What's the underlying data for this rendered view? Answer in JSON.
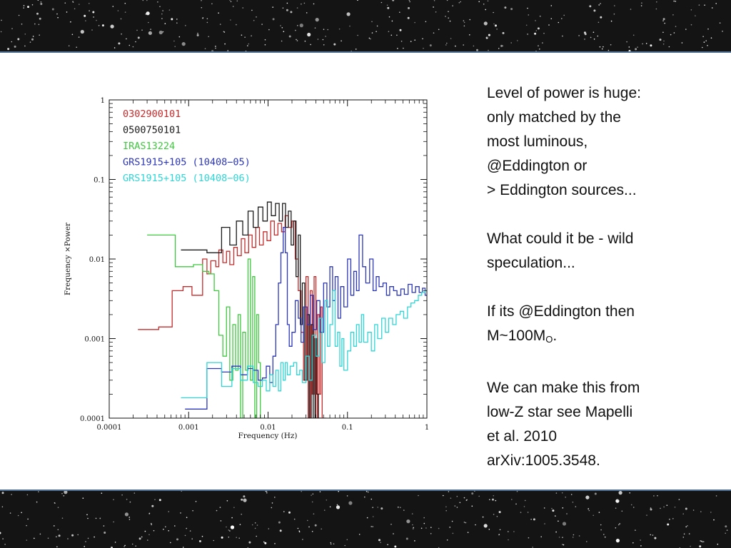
{
  "notes": {
    "p1_line1": "Level of power is huge:",
    "p1_line2": "only matched by the",
    "p1_line3": "most luminous,",
    "p1_line4": "@Eddington or",
    "p1_line5": "> Eddington sources...",
    "p2_line1": "What could it be - wild",
    "p2_line2": "speculation...",
    "p3_line1": "If its @Eddington then",
    "p3_prefix": "M~100M",
    "p3_sub": "O",
    "p3_suffix": ".",
    "p4_line1": "We can make this from",
    "p4_line2": "low-Z  star see Mapelli",
    "p4_line3": "et al. 2010",
    "p4_line4": "arXiv:1005.3548."
  },
  "colors": {
    "background_space": "#141414",
    "panel": "#ffffff",
    "panel_border": "#4f6f94"
  },
  "chart_data": {
    "type": "line",
    "style": "step",
    "xlabel": "Frequency (Hz)",
    "ylabel": "Frequency ×Power",
    "xscale": "log",
    "yscale": "log",
    "xlim": [
      0.0001,
      1
    ],
    "ylim": [
      0.0001,
      1
    ],
    "xticks": [
      "0.0001",
      "0.001",
      "0.01",
      "0.1",
      "1"
    ],
    "yticks": [
      "0.0001",
      "0.001",
      "0.01",
      "0.1",
      "1"
    ],
    "legend_position": "top-left",
    "series": [
      {
        "name": "0302900101",
        "color": "#c62b2b",
        "x": [
          0.00023,
          0.00042,
          0.00062,
          0.00085,
          0.0011,
          0.0015,
          0.0017,
          0.0019,
          0.0022,
          0.0024,
          0.0027,
          0.003,
          0.0033,
          0.0037,
          0.0041,
          0.0046,
          0.0051,
          0.0057,
          0.0063,
          0.007,
          0.0078,
          0.0087,
          0.0097,
          0.0108,
          0.012,
          0.0133,
          0.0148,
          0.0164,
          0.018,
          0.02,
          0.022,
          0.024,
          0.026,
          0.028,
          0.03,
          0.032,
          0.034,
          0.036,
          0.038,
          0.04,
          0.042,
          0.044,
          0.046,
          0.048,
          0.05
        ],
        "values": [
          0.0013,
          0.0014,
          0.004,
          0.0045,
          0.0035,
          0.01,
          0.0065,
          0.0095,
          0.008,
          0.013,
          0.009,
          0.0125,
          0.0085,
          0.014,
          0.011,
          0.018,
          0.012,
          0.02,
          0.014,
          0.025,
          0.015,
          0.022,
          0.017,
          0.03,
          0.02,
          0.028,
          0.022,
          0.035,
          0.025,
          0.03,
          0.01,
          0.004,
          0.0012,
          0.0003,
          0.006,
          0.0001,
          0.004,
          0.0002,
          0.006,
          0.0001,
          0.002,
          0.0002,
          0.0025,
          0.0001,
          0.0001
        ]
      },
      {
        "name": "0500750101",
        "color": "#1a1a1a",
        "x": [
          0.0008,
          0.0017,
          0.0026,
          0.0033,
          0.004,
          0.0048,
          0.0056,
          0.0065,
          0.0075,
          0.0086,
          0.0098,
          0.011,
          0.0124,
          0.0138,
          0.0152,
          0.0166,
          0.018,
          0.0195,
          0.021,
          0.0225,
          0.024,
          0.0255,
          0.027,
          0.029,
          0.031,
          0.033,
          0.035,
          0.037,
          0.039,
          0.041,
          0.043
        ],
        "values": [
          0.013,
          0.012,
          0.025,
          0.015,
          0.03,
          0.02,
          0.04,
          0.025,
          0.045,
          0.03,
          0.052,
          0.035,
          0.05,
          0.03,
          0.05,
          0.025,
          0.04,
          0.015,
          0.03,
          0.006,
          0.02,
          0.0015,
          0.005,
          0.0003,
          0.002,
          0.0001,
          0.0015,
          0.0001,
          0.001,
          0.0002,
          0.0001
        ]
      },
      {
        "name": "IRAS13224",
        "color": "#3fc93f",
        "x": [
          0.0003,
          0.00068,
          0.0009,
          0.00115,
          0.0015,
          0.0018,
          0.0021,
          0.0024,
          0.0027,
          0.003,
          0.0033,
          0.0036,
          0.0039,
          0.0042,
          0.0045,
          0.0048,
          0.0052,
          0.0056,
          0.006,
          0.0064,
          0.0068,
          0.0072,
          0.0076,
          0.008,
          0.0085
        ],
        "values": [
          0.02,
          0.008,
          0.008,
          0.0085,
          0.007,
          0.0065,
          0.004,
          0.0011,
          0.0006,
          0.0025,
          0.0003,
          0.0015,
          0.0004,
          0.002,
          0.0001,
          0.0012,
          0.0004,
          0.01,
          0.0003,
          0.006,
          0.0001,
          0.002,
          0.0005,
          0.0001,
          0.0001
        ]
      },
      {
        "name": "GRS1915+105 (10408−05)",
        "color": "#2b36b8",
        "x": [
          0.0009,
          0.0017,
          0.0026,
          0.0035,
          0.0045,
          0.0055,
          0.0065,
          0.0075,
          0.0085,
          0.0095,
          0.0105,
          0.0115,
          0.0125,
          0.0135,
          0.0145,
          0.0155,
          0.0165,
          0.0175,
          0.0185,
          0.02,
          0.022,
          0.024,
          0.026,
          0.028,
          0.031,
          0.034,
          0.037,
          0.041,
          0.045,
          0.05,
          0.055,
          0.06,
          0.065,
          0.07,
          0.076,
          0.082,
          0.09,
          0.1,
          0.11,
          0.12,
          0.13,
          0.14,
          0.155,
          0.17,
          0.19,
          0.21,
          0.23,
          0.25,
          0.28,
          0.31,
          0.34,
          0.38,
          0.42,
          0.47,
          0.52,
          0.58,
          0.65,
          0.72,
          0.8,
          0.88,
          0.95
        ],
        "values": [
          0.00013,
          0.00042,
          0.00038,
          0.00045,
          0.00035,
          0.00042,
          0.0004,
          0.0003,
          0.00032,
          0.00045,
          0.00028,
          0.0006,
          0.0015,
          0.005,
          0.012,
          0.025,
          0.012,
          0.0015,
          0.0008,
          0.0012,
          0.003,
          0.0018,
          0.0009,
          0.0025,
          0.0015,
          0.0035,
          0.0013,
          0.003,
          0.0012,
          0.005,
          0.0025,
          0.008,
          0.003,
          0.006,
          0.0018,
          0.0045,
          0.0025,
          0.01,
          0.0035,
          0.007,
          0.004,
          0.02,
          0.008,
          0.005,
          0.01,
          0.004,
          0.006,
          0.0045,
          0.005,
          0.0035,
          0.0045,
          0.004,
          0.0035,
          0.0042,
          0.0036,
          0.0048,
          0.0038,
          0.0045,
          0.0038,
          0.0043,
          0.0035
        ]
      },
      {
        "name": "GRS1915+105 (10408−06)",
        "color": "#2fd6d6",
        "x": [
          0.0008,
          0.0017,
          0.0026,
          0.0035,
          0.0045,
          0.0055,
          0.0065,
          0.0075,
          0.0085,
          0.0095,
          0.0105,
          0.0115,
          0.0125,
          0.0135,
          0.0145,
          0.0155,
          0.0165,
          0.0175,
          0.019,
          0.021,
          0.023,
          0.025,
          0.027,
          0.03,
          0.033,
          0.036,
          0.04,
          0.044,
          0.048,
          0.052,
          0.056,
          0.06,
          0.065,
          0.07,
          0.075,
          0.08,
          0.085,
          0.09,
          0.1,
          0.11,
          0.12,
          0.13,
          0.14,
          0.15,
          0.16,
          0.18,
          0.2,
          0.22,
          0.24,
          0.27,
          0.3,
          0.33,
          0.37,
          0.41,
          0.46,
          0.51,
          0.57,
          0.63,
          0.7,
          0.78,
          0.86,
          0.95
        ],
        "values": [
          0.00018,
          0.0005,
          0.00025,
          0.00042,
          0.0003,
          0.00045,
          0.00028,
          0.00025,
          0.0003,
          0.00022,
          0.00035,
          0.00025,
          0.0004,
          0.00022,
          0.0005,
          0.0003,
          0.0005,
          0.00035,
          0.00045,
          0.0005,
          0.00035,
          0.0004,
          0.00028,
          0.0006,
          0.0003,
          0.0011,
          0.0006,
          0.0018,
          0.0005,
          0.003,
          0.0008,
          0.0015,
          0.004,
          0.0008,
          0.0012,
          0.00045,
          0.001,
          0.0004,
          0.0007,
          0.0012,
          0.0008,
          0.0015,
          0.0009,
          0.002,
          0.0009,
          0.0012,
          0.0007,
          0.0015,
          0.001,
          0.0018,
          0.0012,
          0.0018,
          0.0015,
          0.002,
          0.0022,
          0.0018,
          0.0025,
          0.0028,
          0.003,
          0.0035,
          0.0038,
          0.004
        ]
      }
    ]
  }
}
